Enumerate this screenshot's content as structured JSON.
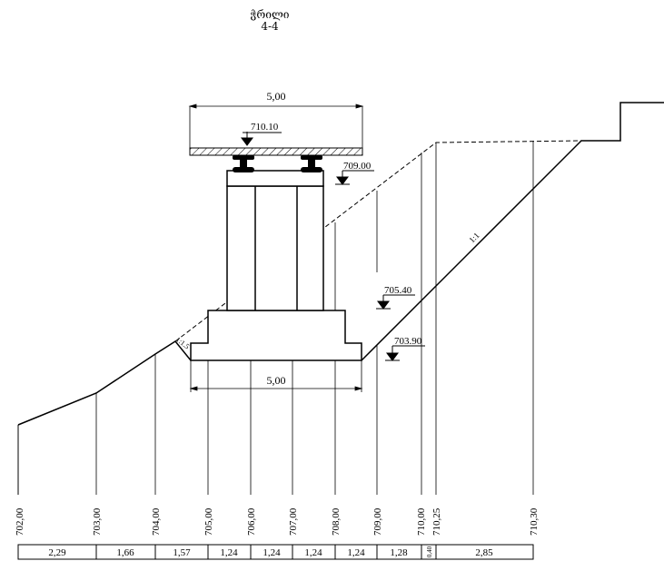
{
  "title": "ჭრილი",
  "subtitle": "4-4",
  "deck_width_label": "5,00",
  "footing_width_label": "5,00",
  "slope_left_label": "1:1.5",
  "slope_right_label": "1:1",
  "elevations": {
    "deck_top": "710.10",
    "bearing": "709.00",
    "footing_top": "705.40",
    "footing_bottom": "703.90"
  },
  "stations": [
    "702,00",
    "703,00",
    "704,00",
    "705,00",
    "706,00",
    "707,00",
    "708,00",
    "709,00",
    "710,00",
    "710,25",
    "710,30"
  ],
  "distances": [
    "2,29",
    "1,66",
    "1,57",
    "1,24",
    "1,24",
    "1,24",
    "1,24",
    "1,28",
    "0,40",
    "2,85"
  ]
}
